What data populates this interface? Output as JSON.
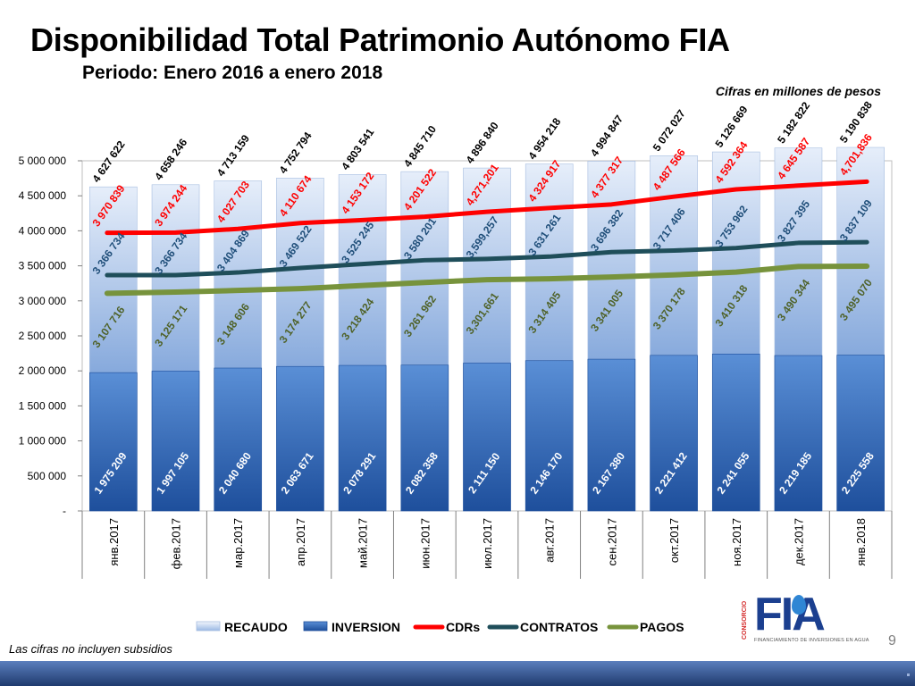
{
  "slide": {
    "title": "Disponibilidad Total Patrimonio Autónomo FIA",
    "subtitle": "Periodo: Enero 2016 a enero 2018",
    "units_note": "Cifras en millones de pesos",
    "footnote": "Las cifras no incluyen subsidios",
    "page_number": "9",
    "logo": {
      "main": "FIA",
      "side": "CONSORCIO",
      "caption": "FINANCIAMIENTO DE INVERSIONES EN AGUA"
    }
  },
  "colors": {
    "recaudo_top": "#e6eefa",
    "recaudo_bottom": "#3f76c6",
    "inversion_top": "#5a8fd6",
    "inversion_bottom": "#1e4f9c",
    "cdrs": "#ff0000",
    "contratos": "#1f4e5a",
    "pagos": "#77933c",
    "total_label": "#000000",
    "cdrs_label": "#ff0000",
    "contratos_label": "#1f4e79",
    "pagos_label": "#4f6228"
  },
  "chart_data": {
    "type": "bar",
    "categories": [
      "янв.2017",
      "фев.2017",
      "мар.2017",
      "апр.2017",
      "май.2017",
      "июн.2017",
      "июл.2017",
      "авг.2017",
      "сен.2017",
      "окт.2017",
      "ноя.2017",
      "дек.2017",
      "янв.2018"
    ],
    "ylim": [
      0,
      5000000
    ],
    "y_ticks": [
      0,
      500000,
      1000000,
      1500000,
      2000000,
      2500000,
      3000000,
      3500000,
      4000000,
      4500000,
      5000000
    ],
    "y_tick_labels": [
      "-",
      "500 000",
      "1 000 000",
      "1 500 000",
      "2 000 000",
      "2 500 000",
      "3 000 000",
      "3 500 000",
      "4 000 000",
      "4 500 000",
      "5 000 000"
    ],
    "grid": false,
    "legend_position": "bottom",
    "series": [
      {
        "name": "RECAUDO",
        "kind": "bar-total",
        "values": [
          4627622,
          4658246,
          4713159,
          4752794,
          4803541,
          4845710,
          4896840,
          4954218,
          4994847,
          5072027,
          5126669,
          5182822,
          5190838
        ],
        "labels": [
          "4 627 622",
          "4 658 246",
          "4 713 159",
          "4 752 794",
          "4 803 541",
          "4 845 710",
          "4 896 840",
          "4 954 218",
          "4 994 847",
          "5 072 027",
          "5 126 669",
          "5 182 822",
          "5 190 838"
        ]
      },
      {
        "name": "INVERSION",
        "kind": "bar-inner",
        "values": [
          1975209,
          1997105,
          2040680,
          2063671,
          2078291,
          2082358,
          2111150,
          2146170,
          2167380,
          2221412,
          2241055,
          2219185,
          2225558
        ],
        "labels": [
          "1 975 209",
          "1 997 105",
          "2 040 680",
          "2 063 671",
          "2 078 291",
          "2 082 358",
          "2 111 150",
          "2 146 170",
          "2 167 380",
          "2 221 412",
          "2 241 055",
          "2 219 185",
          "2 225 558"
        ]
      },
      {
        "name": "CDRs",
        "kind": "line",
        "values": [
          3970839,
          3974244,
          4027703,
          4110674,
          4153172,
          4201522,
          4271201,
          4324917,
          4377317,
          4487566,
          4592364,
          4645587,
          4701836
        ],
        "labels": [
          "3 970 839",
          "3 974 244",
          "4 027 703",
          "4 110 674",
          "4 153 172",
          "4 201 522",
          "4,271,201",
          "4 324 917",
          "4 377 317",
          "4 487 566",
          "4 592 364",
          "4 645 587",
          "4,701,836"
        ]
      },
      {
        "name": "CONTRATOS",
        "kind": "line",
        "values": [
          3366734,
          3366734,
          3404869,
          3469522,
          3525245,
          3580201,
          3599257,
          3631261,
          3696382,
          3717406,
          3753962,
          3827395,
          3837109
        ],
        "labels": [
          "3 366 734",
          "3 366 734",
          "3 404 869",
          "3 469 522",
          "3 525 245",
          "3 580 201",
          "3,599,257",
          "3 631 261",
          "3 696 382",
          "3 717 406",
          "3 753 962",
          "3 827 395",
          "3 837 109"
        ]
      },
      {
        "name": "PAGOS",
        "kind": "line",
        "values": [
          3107716,
          3125171,
          3148606,
          3174277,
          3218424,
          3261962,
          3301661,
          3314405,
          3341005,
          3370178,
          3410318,
          3490344,
          3495070
        ],
        "labels": [
          "3 107 716",
          "3 125 171",
          "3 148 606",
          "3 174 277",
          "3 218 424",
          "3 261 962",
          "3,301,661",
          "3 314 405",
          "3 341 005",
          "3 370 178",
          "3 410 318",
          "3 490 344",
          "3 495 070"
        ]
      }
    ]
  }
}
